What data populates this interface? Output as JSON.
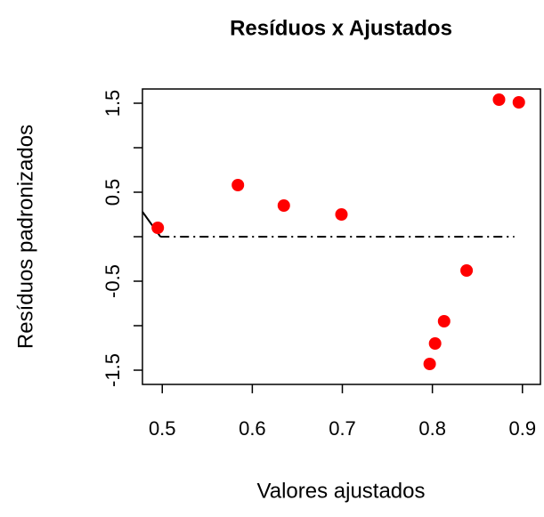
{
  "chart_data": {
    "type": "scatter",
    "title": "Resíduos x Ajustados",
    "x_label": "Valores ajustados",
    "y_label": "Resíduos padronizados",
    "xlim": [
      0.478,
      0.92
    ],
    "ylim": [
      -1.66,
      1.66
    ],
    "xticks": [
      0.5,
      0.6,
      0.7,
      0.8,
      0.9
    ],
    "yticks": [
      -1.5,
      -0.5,
      0.5,
      1.5
    ],
    "yticks_minor": [
      -1,
      0,
      1
    ],
    "series": [
      {
        "color": "#ff0000",
        "x": [
          0.495,
          0.584,
          0.635,
          0.699,
          0.797,
          0.803,
          0.813,
          0.838,
          0.874,
          0.896
        ],
        "values": [
          0.1,
          0.58,
          0.35,
          0.25,
          -1.43,
          -1.2,
          -0.95,
          -0.38,
          1.54,
          1.51
        ]
      }
    ],
    "reference_line": {
      "x": [
        0.498,
        0.891
      ],
      "values": [
        0,
        0
      ]
    },
    "curve": {
      "x": [
        0.478,
        0.498
      ],
      "values": [
        0.28,
        0
      ]
    }
  }
}
